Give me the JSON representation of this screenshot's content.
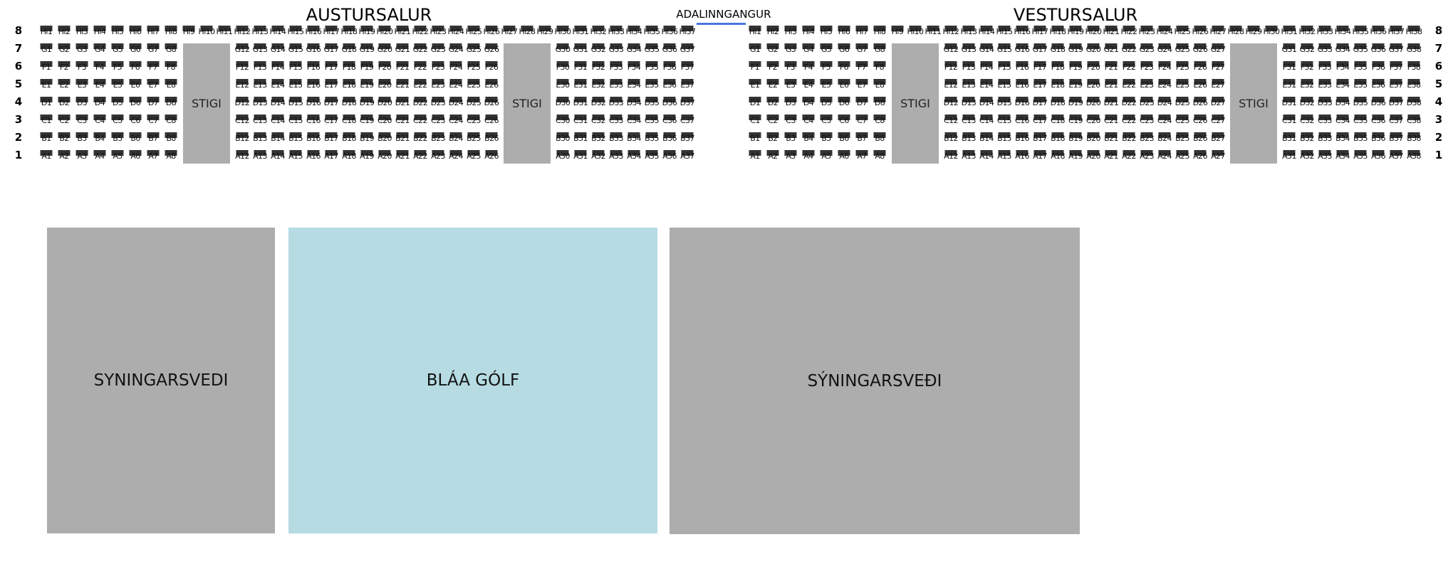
{
  "colors": {
    "seat": "#333333",
    "stair": "#adadad",
    "exhibition": "#adadad",
    "blue_floor": "#b6dbe2",
    "entrance_line": "#4a74e0"
  },
  "entrance": {
    "label": "ADALINNGANGUR"
  },
  "rows": [
    {
      "number": "8",
      "prefix": "Hi"
    },
    {
      "number": "7",
      "prefix": "G"
    },
    {
      "number": "6",
      "prefix": "F"
    },
    {
      "number": "5",
      "prefix": "E"
    },
    {
      "number": "4",
      "prefix": "D"
    },
    {
      "number": "3",
      "prefix": "C"
    },
    {
      "number": "2",
      "prefix": "B"
    },
    {
      "number": "1",
      "prefix": "A"
    }
  ],
  "halls": [
    {
      "title": "AUSTURSALUR",
      "top_row_seats": [
        1,
        37
      ],
      "blocks": [
        [
          1,
          8
        ],
        [
          12,
          26
        ],
        [
          30,
          37
        ]
      ],
      "stairs": [
        {
          "label": "STIGI",
          "cols": [
            9,
            11
          ]
        },
        {
          "label": "STIGI",
          "cols": [
            27,
            29
          ]
        }
      ]
    },
    {
      "title": "VESTURSALUR",
      "top_row_seats": [
        1,
        38
      ],
      "blocks": [
        [
          1,
          8
        ],
        [
          12,
          27
        ],
        [
          31,
          38
        ]
      ],
      "stairs": [
        {
          "label": "STIGI",
          "cols": [
            9,
            11
          ]
        },
        {
          "label": "STIGI",
          "cols": [
            28,
            30
          ]
        }
      ]
    }
  ],
  "areas": [
    {
      "label": "SYNINGARSVEDI",
      "kind": "exhibition"
    },
    {
      "label": "BLÁA GÓLF",
      "kind": "blue_floor"
    },
    {
      "label": "SÝNINGARSVEÐI",
      "kind": "exhibition"
    }
  ]
}
